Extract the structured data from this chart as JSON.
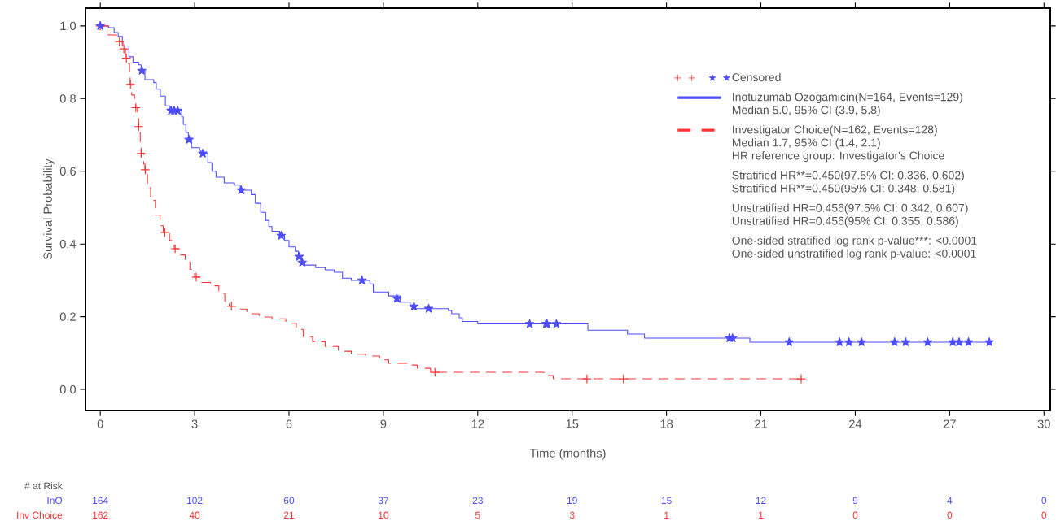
{
  "chart_data": {
    "type": "step",
    "xlabel": "Time (months)",
    "ylabel": "Survival Probability",
    "xlim": [
      -0.47,
      30.2
    ],
    "ylim": [
      -0.058,
      1.049
    ],
    "xticks": [
      0,
      3,
      6,
      9,
      12,
      15,
      18,
      21,
      24,
      27,
      30
    ],
    "yticks": [
      {
        "value": 0,
        "label": "0.0"
      },
      {
        "value": 0.2,
        "label": "0.2"
      },
      {
        "value": 0.4,
        "label": "0.4"
      },
      {
        "value": 0.6,
        "label": "0.6"
      },
      {
        "value": 0.8,
        "label": "0.8"
      },
      {
        "value": 1,
        "label": "1.0"
      }
    ],
    "grid": false,
    "legend": "top right",
    "series": [
      {
        "name": "Inotuzumab Ozogamicin(N=164, Events=129)",
        "color": "#4d4dff",
        "line_style": "solid",
        "marker": "none",
        "x": [
          0,
          0.26,
          0.44,
          0.57,
          0.7,
          0.91,
          1.04,
          1.22,
          1.3,
          1.42,
          1.7,
          1.78,
          1.91,
          2.07,
          2.2,
          2.59,
          2.64,
          2.72,
          2.8,
          2.9,
          3.16,
          3.2,
          3.42,
          3.55,
          3.68,
          3.94,
          4.27,
          4.45,
          4.8,
          4.93,
          5.1,
          5.26,
          5.36,
          5.46,
          5.7,
          5.86,
          6.0,
          6.2,
          6.3,
          6.4,
          6.47,
          6.85,
          7.15,
          7.44,
          7.7,
          7.98,
          8.57,
          8.68,
          9.17,
          9.53,
          9.85,
          10.0,
          11.06,
          11.17,
          11.41,
          11.51,
          12.0,
          15.5,
          16.76,
          17.3,
          20.65,
          28.26
        ],
        "values": [
          1.0,
          0.995,
          0.982,
          0.971,
          0.945,
          0.915,
          0.9,
          0.893,
          0.877,
          0.852,
          0.844,
          0.826,
          0.807,
          0.78,
          0.767,
          0.75,
          0.729,
          0.707,
          0.687,
          0.665,
          0.658,
          0.649,
          0.624,
          0.6,
          0.584,
          0.568,
          0.562,
          0.548,
          0.536,
          0.512,
          0.487,
          0.465,
          0.448,
          0.435,
          0.423,
          0.41,
          0.392,
          0.38,
          0.365,
          0.349,
          0.342,
          0.335,
          0.329,
          0.322,
          0.306,
          0.3,
          0.29,
          0.268,
          0.257,
          0.24,
          0.228,
          0.222,
          0.217,
          0.208,
          0.197,
          0.187,
          0.18,
          0.163,
          0.152,
          0.141,
          0.13,
          0.13
        ]
      },
      {
        "name": "Investigator Choice(N=162, Events=128)",
        "color": "#ff3333",
        "line_style": "dashed",
        "marker": "none",
        "x": [
          0,
          0.26,
          0.52,
          0.6,
          0.72,
          0.8,
          0.88,
          0.93,
          0.95,
          1.0,
          1.09,
          1.12,
          1.18,
          1.22,
          1.27,
          1.3,
          1.38,
          1.42,
          1.5,
          1.6,
          1.75,
          1.9,
          2.0,
          2.2,
          2.35,
          2.5,
          2.7,
          2.85,
          3.0,
          3.15,
          3.5,
          3.77,
          3.96,
          4.1,
          4.37,
          4.66,
          5.05,
          5.46,
          5.9,
          6.23,
          6.45,
          6.75,
          7.15,
          7.57,
          7.98,
          8.44,
          8.88,
          9.17,
          9.77,
          10.08,
          10.5,
          14.1,
          14.4,
          22.28
        ],
        "values": [
          1.0,
          0.975,
          0.964,
          0.957,
          0.937,
          0.911,
          0.897,
          0.875,
          0.839,
          0.81,
          0.788,
          0.775,
          0.745,
          0.723,
          0.68,
          0.649,
          0.62,
          0.604,
          0.56,
          0.52,
          0.48,
          0.45,
          0.432,
          0.41,
          0.387,
          0.37,
          0.35,
          0.33,
          0.309,
          0.294,
          0.285,
          0.264,
          0.239,
          0.229,
          0.221,
          0.208,
          0.199,
          0.194,
          0.182,
          0.165,
          0.145,
          0.131,
          0.118,
          0.105,
          0.097,
          0.092,
          0.081,
          0.072,
          0.067,
          0.058,
          0.047,
          0.038,
          0.029,
          0.029
        ]
      },
      {
        "type": "scatter",
        "color": "#ff3333",
        "marker": "cross",
        "x": [
          0,
          0.61,
          0.75,
          0.83,
          0.96,
          1.13,
          1.22,
          1.3,
          1.43,
          2.05,
          2.38,
          3.05,
          4.17,
          10.64,
          15.47,
          16.63,
          22.28
        ],
        "values": [
          1.0,
          0.957,
          0.937,
          0.911,
          0.839,
          0.775,
          0.723,
          0.649,
          0.604,
          0.432,
          0.387,
          0.309,
          0.229,
          0.047,
          0.029,
          0.029,
          0.029
        ]
      },
      {
        "type": "scatter",
        "color": "#4d4dff",
        "marker": "star",
        "x": [
          0,
          1.32,
          2.25,
          2.35,
          2.46,
          2.82,
          3.26,
          4.48,
          5.75,
          6.32,
          6.42,
          8.32,
          9.43,
          9.97,
          10.44,
          13.65,
          14.17,
          14.2,
          14.5,
          20.0,
          20.1,
          21.9,
          23.5,
          23.8,
          24.2,
          25.25,
          25.6,
          26.3,
          27.1,
          27.3,
          27.6,
          28.26
        ],
        "values": [
          1.0,
          0.877,
          0.767,
          0.767,
          0.767,
          0.687,
          0.649,
          0.548,
          0.423,
          0.365,
          0.349,
          0.3,
          0.25,
          0.228,
          0.222,
          0.18,
          0.18,
          0.18,
          0.18,
          0.141,
          0.141,
          0.13,
          0.13,
          0.13,
          0.13,
          0.13,
          0.13,
          0.13,
          0.13,
          0.13,
          0.13,
          0.13
        ]
      }
    ],
    "annotations": [
      "Censored",
      "Median 5.0, 95% CI (3.9, 5.8)",
      "Median 1.7, 95% CI (1.4, 2.1)",
      "HR reference group: Investigator's Choice",
      "Stratified HR**=0.450(97.5% CI: 0.336, 0.602)",
      "Stratified HR**=0.450(95% CI: 0.348, 0.581)",
      "Unstratified HR=0.456(97.5% CI: 0.342, 0.607)",
      "Unstratified HR=0.456(95% CI: 0.355, 0.586)",
      "One-sided stratified log rank p-value***: <0.0001",
      "One-sided unstratified log rank p-value: <0.0001",
      "# at Risk",
      "InO",
      "164",
      "102",
      "60",
      "37",
      "23",
      "19",
      "15",
      "12",
      "9",
      "4",
      "0",
      "Inv Choice",
      "162",
      "40",
      "21",
      "10",
      "5",
      "3",
      "1",
      "1",
      "0",
      "0",
      "0"
    ]
  }
}
